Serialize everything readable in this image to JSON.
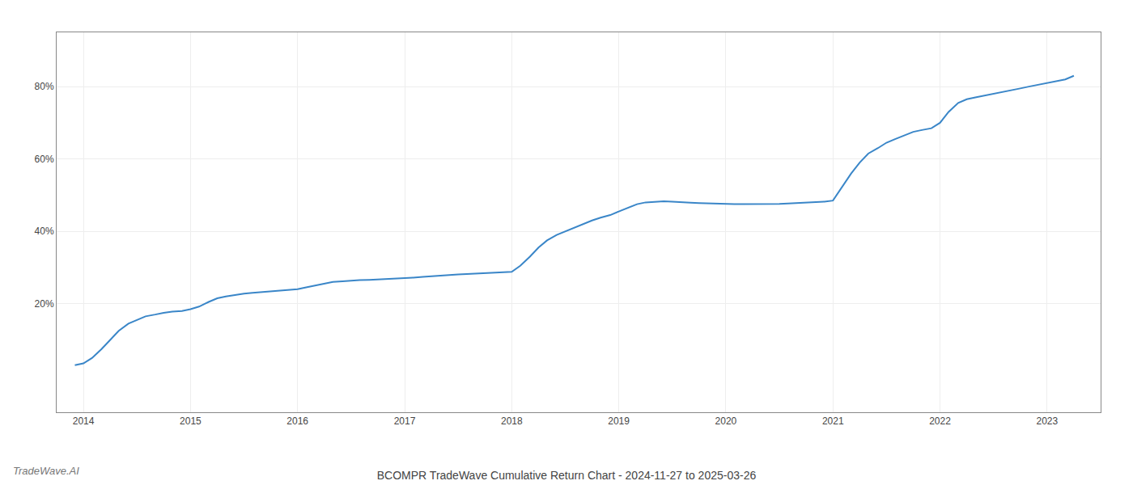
{
  "chart_data": {
    "type": "line",
    "title": "BCOMPR TradeWave Cumulative Return Chart - 2024-11-27 to 2025-03-26",
    "annotations": [
      "TradeWave.AI"
    ],
    "color": "#3a86c8",
    "grid": true,
    "x": [
      2013.92,
      2014.0,
      2014.08,
      2014.17,
      2014.25,
      2014.33,
      2014.42,
      2014.5,
      2014.58,
      2014.67,
      2014.75,
      2014.83,
      2014.92,
      2015.0,
      2015.08,
      2015.17,
      2015.25,
      2015.33,
      2015.42,
      2015.5,
      2015.58,
      2015.67,
      2015.75,
      2015.83,
      2015.92,
      2016.0,
      2016.08,
      2016.17,
      2016.25,
      2016.33,
      2016.42,
      2016.5,
      2016.58,
      2016.67,
      2016.75,
      2016.83,
      2016.92,
      2017.0,
      2017.08,
      2017.17,
      2017.25,
      2017.33,
      2017.42,
      2017.5,
      2017.58,
      2017.67,
      2017.75,
      2017.83,
      2017.92,
      2018.0,
      2018.08,
      2018.17,
      2018.25,
      2018.33,
      2018.42,
      2018.5,
      2018.58,
      2018.67,
      2018.75,
      2018.83,
      2018.92,
      2019.0,
      2019.08,
      2019.17,
      2019.25,
      2019.33,
      2019.42,
      2019.5,
      2019.58,
      2019.67,
      2019.75,
      2019.83,
      2019.92,
      2020.0,
      2020.08,
      2020.17,
      2020.25,
      2020.33,
      2020.42,
      2020.5,
      2020.58,
      2020.67,
      2020.75,
      2020.83,
      2020.92,
      2021.0,
      2021.08,
      2021.17,
      2021.25,
      2021.33,
      2021.42,
      2021.5,
      2021.58,
      2021.67,
      2021.75,
      2021.83,
      2021.92,
      2022.0,
      2022.08,
      2022.17,
      2022.25,
      2022.33,
      2022.42,
      2022.5,
      2022.58,
      2022.67,
      2022.75,
      2022.83,
      2022.92,
      2023.0,
      2023.08,
      2023.17,
      2023.25
    ],
    "values": [
      3.0,
      3.5,
      5.0,
      7.5,
      10.0,
      12.5,
      14.5,
      15.5,
      16.5,
      17.0,
      17.5,
      17.8,
      18.0,
      18.5,
      19.2,
      20.5,
      21.5,
      22.0,
      22.5,
      22.8,
      23.0,
      23.2,
      23.4,
      23.6,
      23.8,
      24.0,
      24.5,
      25.0,
      25.5,
      26.0,
      26.2,
      26.4,
      26.5,
      26.6,
      26.7,
      26.8,
      26.9,
      27.0,
      27.2,
      27.4,
      27.6,
      27.8,
      28.0,
      28.1,
      28.2,
      28.3,
      28.4,
      28.5,
      28.6,
      28.8,
      30.5,
      33.0,
      35.5,
      37.5,
      39.0,
      40.0,
      41.0,
      42.0,
      43.0,
      43.8,
      44.5,
      45.5,
      46.5,
      47.5,
      48.0,
      48.2,
      48.3,
      48.2,
      48.0,
      47.9,
      47.8,
      47.7,
      47.7,
      47.6,
      47.5,
      47.5,
      47.5,
      47.5,
      47.5,
      47.6,
      47.7,
      47.8,
      47.9,
      48.0,
      48.2,
      48.5,
      52.0,
      56.0,
      59.0,
      61.5,
      63.0,
      64.5,
      65.5,
      66.5,
      67.5,
      68.0,
      68.5,
      70.0,
      73.0,
      75.5,
      76.5,
      77.0,
      77.5,
      78.0,
      78.5,
      79.0,
      79.5,
      80.0,
      80.5,
      81.0,
      81.5,
      82.0,
      83.0
    ],
    "xlim": [
      2013.75,
      2023.5
    ],
    "xticks": [
      2014,
      2015,
      2016,
      2017,
      2018,
      2019,
      2020,
      2021,
      2022,
      2023
    ],
    "ylim": [
      -10,
      95
    ],
    "yticks": [
      {
        "value": 20,
        "label": "20%"
      },
      {
        "value": 40,
        "label": "40%"
      },
      {
        "value": 60,
        "label": "60%"
      },
      {
        "value": 80,
        "label": "80%"
      }
    ]
  }
}
